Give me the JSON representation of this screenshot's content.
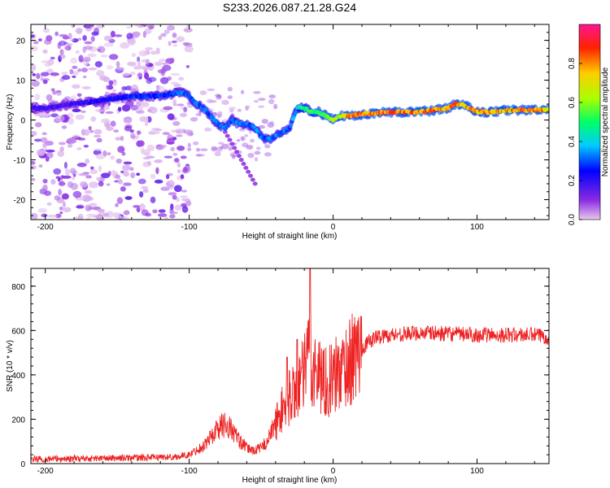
{
  "title": "S233.2026.087.21.28.G24",
  "chart_data": [
    {
      "type": "heatmap",
      "xlabel": "Height of straight line (km)",
      "ylabel": "Frequency (Hz)",
      "xlim": [
        -210,
        150
      ],
      "ylim": [
        -25,
        24
      ],
      "xticks": [
        -200,
        -100,
        0,
        100
      ],
      "yticks": [
        20,
        10,
        0,
        -10,
        -20
      ],
      "colorbar": {
        "label": "Normalized spectral amplitude",
        "range": [
          0,
          1
        ],
        "ticks": [
          "0.0",
          "0.2",
          "0.4",
          "0.6",
          "0.8"
        ],
        "colormap": "rainbow (violet to red)"
      },
      "ridge": {
        "x": [
          -200,
          -180,
          -160,
          -140,
          -120,
          -105,
          -100,
          -95,
          -90,
          -85,
          -80,
          -75,
          -70,
          -65,
          -60,
          -55,
          -50,
          -45,
          -40,
          -35,
          -30,
          -25,
          -22,
          -20,
          -15,
          -10,
          -5,
          0,
          5,
          10,
          20,
          40,
          60,
          80,
          85,
          90,
          95,
          100,
          110,
          120,
          150
        ],
        "y": [
          3,
          4,
          5,
          6,
          6,
          7,
          6,
          4,
          3,
          1,
          -1,
          -2,
          0,
          -1,
          -1,
          -2,
          -4,
          -5,
          -4,
          -3,
          -2,
          3,
          3,
          3,
          2,
          2,
          1,
          0,
          1,
          1,
          1.5,
          2,
          2,
          3,
          4,
          4,
          3,
          2,
          2,
          2.5,
          2.5
        ],
        "amplitude": [
          0.2,
          0.2,
          0.25,
          0.3,
          0.3,
          0.35,
          0.35,
          0.35,
          0.35,
          0.35,
          0.35,
          0.35,
          0.35,
          0.35,
          0.35,
          0.35,
          0.35,
          0.35,
          0.35,
          0.35,
          0.35,
          0.45,
          0.5,
          0.5,
          0.55,
          0.55,
          0.6,
          0.65,
          0.75,
          0.85,
          0.9,
          0.9,
          0.9,
          0.9,
          0.85,
          0.85,
          0.85,
          0.85,
          0.85,
          0.85,
          0.85
        ]
      }
    },
    {
      "type": "line",
      "xlabel": "Height of straight line (km)",
      "ylabel": "SNR (10 * v/v)",
      "xlim": [
        -210,
        150
      ],
      "ylim": [
        0,
        880
      ],
      "xticks": [
        -200,
        -100,
        0,
        100
      ],
      "yticks": [
        0,
        200,
        400,
        600,
        800
      ],
      "color": "#ee2222",
      "series": {
        "name": "SNR",
        "x": [
          -210,
          -150,
          -110,
          -100,
          -90,
          -85,
          -80,
          -75,
          -70,
          -65,
          -60,
          -55,
          -50,
          -45,
          -40,
          -35,
          -30,
          -25,
          -20,
          -17,
          -15,
          -10,
          -5,
          0,
          5,
          10,
          15,
          20,
          25,
          30,
          40,
          60,
          80,
          100,
          120,
          140,
          150
        ],
        "y": [
          20,
          25,
          30,
          40,
          80,
          120,
          160,
          180,
          150,
          100,
          70,
          60,
          70,
          110,
          180,
          250,
          300,
          350,
          400,
          500,
          430,
          410,
          370,
          380,
          420,
          450,
          480,
          520,
          550,
          570,
          580,
          590,
          585,
          580,
          580,
          580,
          570
        ]
      },
      "spikes": [
        {
          "x": -16,
          "y": 880
        },
        {
          "x": -25,
          "y": 560
        },
        {
          "x": -32,
          "y": 480
        }
      ]
    }
  ]
}
